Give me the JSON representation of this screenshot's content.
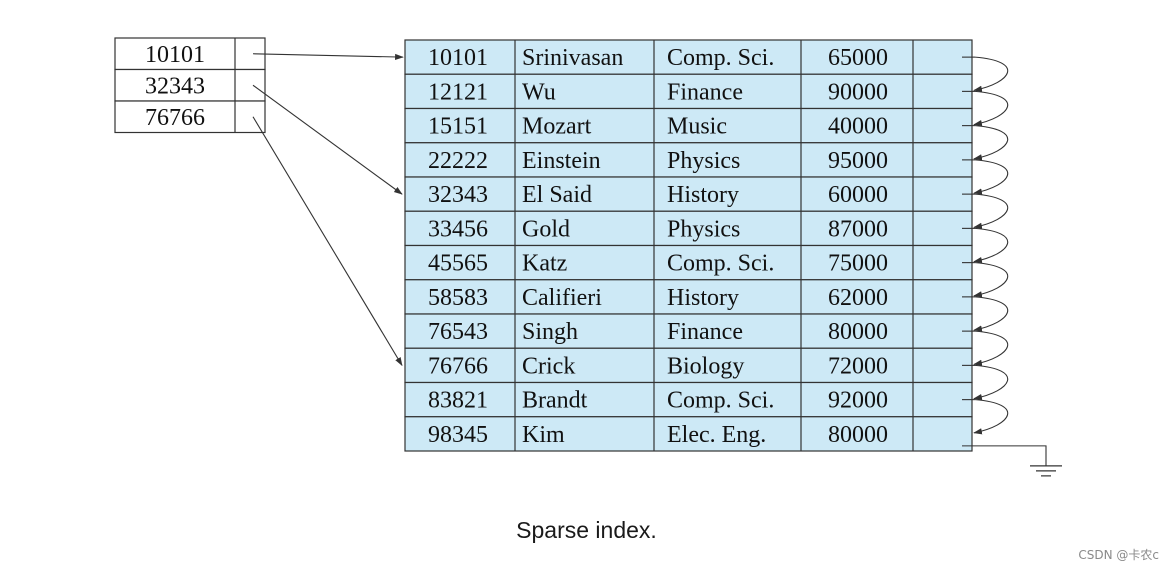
{
  "index": {
    "entries": [
      "10101",
      "32343",
      "76766"
    ],
    "targets": [
      0,
      4,
      9
    ]
  },
  "file": {
    "rows": [
      [
        "10101",
        "Srinivasan",
        "Comp. Sci.",
        "65000"
      ],
      [
        "12121",
        "Wu",
        "Finance",
        "90000"
      ],
      [
        "15151",
        "Mozart",
        "Music",
        "40000"
      ],
      [
        "22222",
        "Einstein",
        "Physics",
        "95000"
      ],
      [
        "32343",
        "El Said",
        "History",
        "60000"
      ],
      [
        "33456",
        "Gold",
        "Physics",
        "87000"
      ],
      [
        "45565",
        "Katz",
        "Comp. Sci.",
        "75000"
      ],
      [
        "58583",
        "Califieri",
        "History",
        "62000"
      ],
      [
        "76543",
        "Singh",
        "Finance",
        "80000"
      ],
      [
        "76766",
        "Crick",
        "Biology",
        "72000"
      ],
      [
        "83821",
        "Brandt",
        "Comp. Sci.",
        "92000"
      ],
      [
        "98345",
        "Kim",
        "Elec. Eng.",
        "80000"
      ]
    ]
  },
  "caption": "Sparse index.",
  "watermark": "CSDN @卡农c",
  "colors": {
    "record_fill": "#cde9f6",
    "line": "#333333"
  }
}
